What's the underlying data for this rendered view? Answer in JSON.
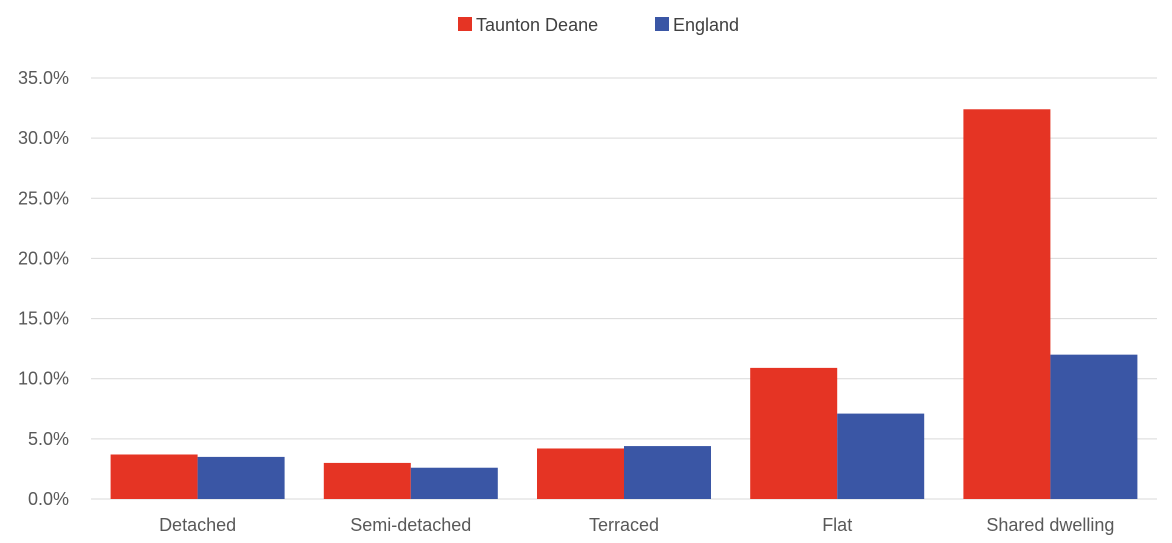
{
  "chart_data": {
    "type": "bar",
    "categories": [
      "Detached",
      "Semi-detached",
      "Terraced",
      "Flat",
      "Shared dwelling"
    ],
    "series": [
      {
        "name": "Taunton Deane",
        "color": "#E53424",
        "values": [
          3.7,
          3.0,
          4.2,
          10.9,
          32.4
        ]
      },
      {
        "name": "England",
        "color": "#3A56A5",
        "values": [
          3.5,
          2.6,
          4.4,
          7.1,
          12.0
        ]
      }
    ],
    "ylim": [
      0,
      35
    ],
    "yticks": [
      "0.0%",
      "5.0%",
      "10.0%",
      "15.0%",
      "20.0%",
      "25.0%",
      "30.0%",
      "35.0%"
    ],
    "grid": true,
    "legend_position": "top-center",
    "gridline_color": "#D9D9D9"
  }
}
